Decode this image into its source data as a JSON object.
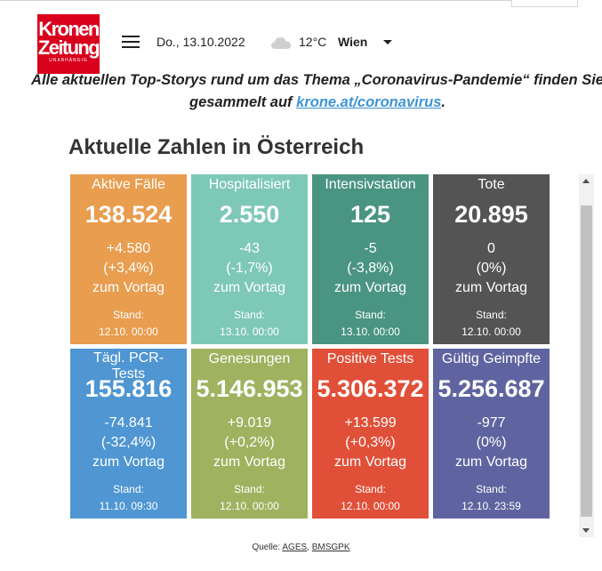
{
  "header": {
    "logo_line1": "Kronen",
    "logo_line2": "Zeitung",
    "logo_sub": "UNABHÄNGIG",
    "date": "Do., 13.10.2022",
    "temperature": "12°C",
    "city": "Wien",
    "icons": {
      "menu": "hamburger-icon",
      "weather": "cloud-icon",
      "dropdown": "chevron-down-icon"
    }
  },
  "intro": {
    "text": "Alle aktuellen Top-Storys rund um das Thema „Coronavirus-Pandemie“ finden Sie gesammelt auf",
    "link": "krone.at/coronavirus",
    "suffix": "."
  },
  "widget": {
    "title": "Aktuelle Zahlen in Österreich",
    "tiles": [
      {
        "label": "Aktive Fälle",
        "value": "138.524",
        "delta": "+4.580",
        "pct": "(+3,4%)",
        "vortag": "zum Vortag",
        "stand_label": "Stand:",
        "stand": "12.10. 00:00",
        "color": "#e89d4f"
      },
      {
        "label": "Hospitalisiert",
        "value": "2.550",
        "delta": "-43",
        "pct": "(-1,7%)",
        "vortag": "zum Vortag",
        "stand_label": "Stand:",
        "stand": "13.10. 00:00",
        "color": "#7ec8b8"
      },
      {
        "label": "Intensivstation",
        "value": "125",
        "delta": "-5",
        "pct": "(-3,8%)",
        "vortag": "zum Vortag",
        "stand_label": "Stand:",
        "stand": "13.10. 00:00",
        "color": "#4a9482"
      },
      {
        "label": "Tote",
        "value": "20.895",
        "delta": "0",
        "pct": "(0%)",
        "vortag": "zum Vortag",
        "stand_label": "Stand:",
        "stand": "12.10. 00:00",
        "color": "#545454"
      },
      {
        "label": "Tägl. PCR-Tests",
        "value": "155.816",
        "delta": "-74.841",
        "pct": "(-32,4%)",
        "vortag": "zum Vortag",
        "stand_label": "Stand:",
        "stand": "11.10. 09:30",
        "color": "#4f96d2"
      },
      {
        "label": "Genesungen",
        "value": "5.146.953",
        "delta": "+9.019",
        "pct": "(+0,2%)",
        "vortag": "zum Vortag",
        "stand_label": "Stand:",
        "stand": "12.10. 00:00",
        "color": "#9fb25f"
      },
      {
        "label": "Positive Tests",
        "value": "5.306.372",
        "delta": "+13.599",
        "pct": "(+0,3%)",
        "vortag": "zum Vortag",
        "stand_label": "Stand:",
        "stand": "12.10. 00:00",
        "color": "#e05038"
      },
      {
        "label": "Gültig Geimpfte",
        "value": "5.256.687",
        "delta": "-977",
        "pct": "(0%)",
        "vortag": "zum Vortag",
        "stand_label": "Stand:",
        "stand": "12.10. 23:59",
        "color": "#5f64a0"
      }
    ]
  },
  "source": {
    "prefix": "Quelle:",
    "link1": "AGES",
    "sep": ",",
    "link2": "BMSGPK"
  }
}
